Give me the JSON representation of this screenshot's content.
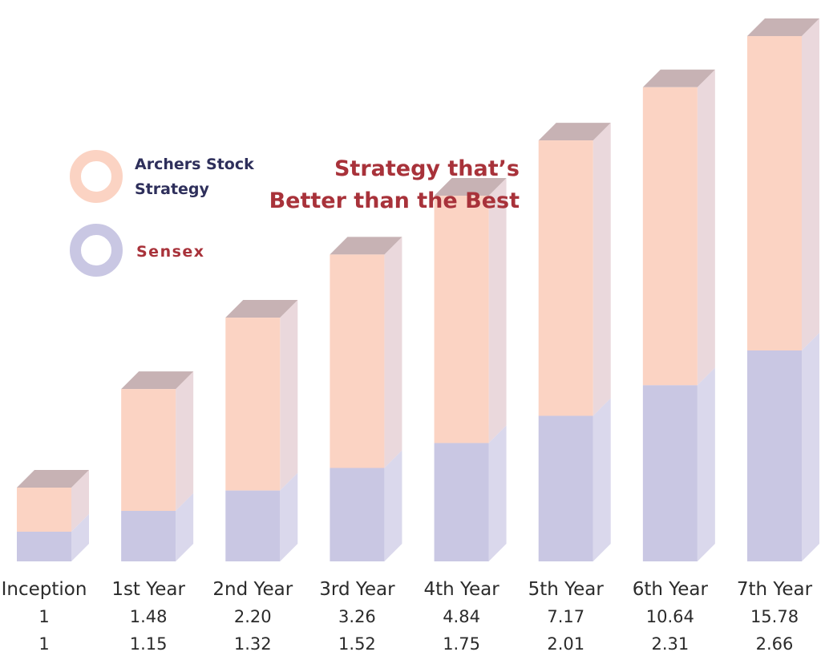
{
  "chart_data": {
    "type": "bar",
    "subtype": "3d-stacked-overlay",
    "title_line1": "Strategy that’s",
    "title_line2": "Better than the Best",
    "categories": [
      "Inception",
      "1st Year",
      "2nd Year",
      "3rd Year",
      "4th Year",
      "5th Year",
      "6th Year",
      "7th Year"
    ],
    "series": [
      {
        "name": "Archers Stock Strategy",
        "legend_line1": "Archers Stock",
        "legend_line2": "Strategy",
        "labels": [
          "1",
          "1.48",
          "2.20",
          "3.26",
          "4.84",
          "7.17",
          "10.64",
          "15.78"
        ],
        "values": [
          1,
          1.48,
          2.2,
          3.26,
          4.84,
          7.17,
          10.64,
          15.78
        ],
        "color": "#fbd3c3"
      },
      {
        "name": "Sensex",
        "labels": [
          "1",
          "1.15",
          "1.32",
          "1.52",
          "1.75",
          "2.01",
          "2.31",
          "2.66"
        ],
        "values": [
          1,
          1.15,
          1.32,
          1.52,
          1.75,
          2.01,
          2.31,
          2.66
        ],
        "color": "#c9c7e3"
      }
    ],
    "legend_position": "top-left",
    "grid": false,
    "colors": {
      "title": "#a8323a",
      "legend_archers_text": "#2e2f5b",
      "legend_sensex_text": "#a8323a",
      "axis_text": "#2b2b2b",
      "bar_top": "#c7b2b4",
      "archers_side": "#ead8dc",
      "sensex_side": "#dad8ec"
    }
  }
}
